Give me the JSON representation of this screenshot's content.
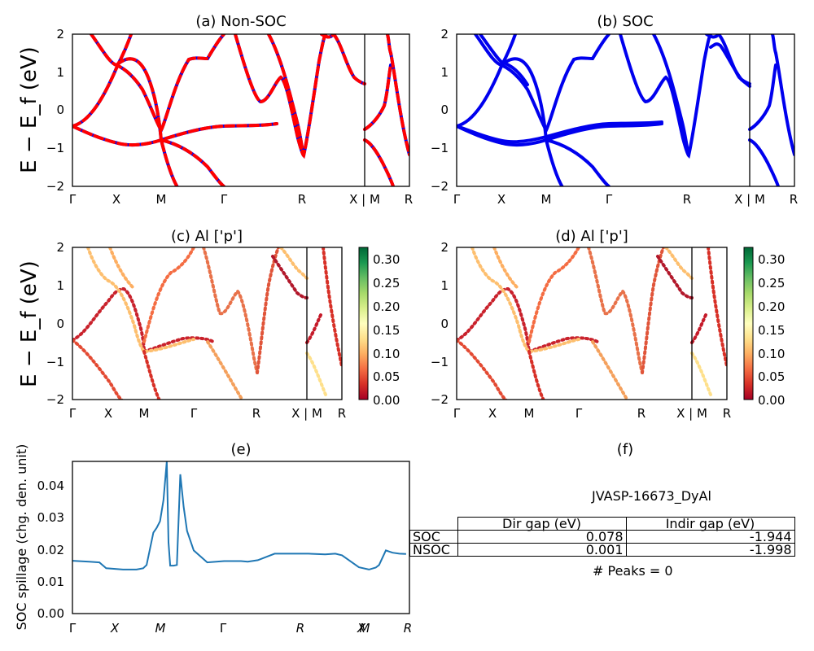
{
  "chart_data": [
    {
      "id": "a",
      "type": "line",
      "title": "(a) Non-SOC",
      "ylabel": "E − E_f (eV)",
      "ylim": [
        -2,
        2
      ],
      "yticks": [
        "2",
        "1",
        "0",
        "−1",
        "−2"
      ],
      "kpath": [
        "Γ",
        "X",
        "M",
        "Γ",
        "R",
        "X | M",
        "R"
      ],
      "series": [
        {
          "color": "#0000ee",
          "style": "solid"
        },
        {
          "color": "#ff0000",
          "style": "dashed"
        }
      ]
    },
    {
      "id": "b",
      "type": "line",
      "title": "(b) SOC",
      "ylim": [
        -2,
        2
      ],
      "yticks": [
        "2",
        "1",
        "0",
        "−1",
        "−2"
      ],
      "kpath": [
        "Γ",
        "X",
        "M",
        "Γ",
        "R",
        "X | M",
        "R"
      ],
      "series": [
        {
          "color": "#0000ee",
          "style": "solid"
        }
      ]
    },
    {
      "id": "c",
      "type": "scatter",
      "title": "(c)  Al ['p']",
      "ylabel": "E − E_f (eV)",
      "ylim": [
        -2,
        2
      ],
      "yticks": [
        "2",
        "1",
        "0",
        "−1",
        "−2"
      ],
      "kpath": [
        "Γ",
        "X",
        "M",
        "Γ",
        "R",
        "X | M",
        "R"
      ],
      "colorbar": {
        "range": [
          0,
          0.32
        ],
        "ticks": [
          "0.30",
          "0.25",
          "0.20",
          "0.15",
          "0.10",
          "0.05",
          "0.00"
        ],
        "colormap": "RdYlGn"
      }
    },
    {
      "id": "d",
      "type": "scatter",
      "title": "(d) Al ['p']",
      "ylim": [
        -2,
        2
      ],
      "yticks": [
        "2",
        "1",
        "0",
        "−1",
        "−2"
      ],
      "kpath": [
        "Γ",
        "X",
        "M",
        "Γ",
        "R",
        "X | M",
        "R"
      ],
      "colorbar": {
        "range": [
          0,
          0.32
        ],
        "ticks": [
          "0.30",
          "0.25",
          "0.20",
          "0.15",
          "0.10",
          "0.05",
          "0.00"
        ],
        "colormap": "RdYlGn"
      }
    },
    {
      "id": "e",
      "type": "line",
      "title": "(e)",
      "ylabel": "SOC spillage (chg. den. unit)",
      "ylim": [
        0,
        0.047
      ],
      "yticks": [
        "0.04",
        "0.03",
        "0.02",
        "0.01",
        "0.00"
      ],
      "kpath": [
        "Γ",
        "X",
        "M",
        "Γ",
        "R",
        "X",
        "M",
        "R"
      ],
      "series": [
        {
          "color": "#1f77b4",
          "x": [
            0,
            0.05,
            0.08,
            0.1,
            0.15,
            0.19,
            0.21,
            0.22,
            0.24,
            0.25,
            0.26,
            0.27,
            0.28,
            0.285,
            0.29,
            0.3,
            0.31,
            0.32,
            0.33,
            0.34,
            0.36,
            0.4,
            0.45,
            0.5,
            0.52,
            0.55,
            0.6,
            0.62,
            0.65,
            0.7,
            0.75,
            0.78,
            0.8,
            0.85,
            0.88,
            0.9,
            0.91,
            0.93,
            0.95,
            0.97,
            0.99
          ],
          "y": [
            0.0163,
            0.016,
            0.0158,
            0.014,
            0.0136,
            0.0136,
            0.014,
            0.015,
            0.025,
            0.0265,
            0.0285,
            0.035,
            0.047,
            0.022,
            0.0148,
            0.0148,
            0.015,
            0.043,
            0.033,
            0.0255,
            0.0195,
            0.0158,
            0.0162,
            0.0162,
            0.016,
            0.0165,
            0.0185,
            0.0185,
            0.0185,
            0.0185,
            0.0183,
            0.0185,
            0.018,
            0.0143,
            0.0136,
            0.0142,
            0.015,
            0.0195,
            0.0188,
            0.0185,
            0.0184
          ]
        }
      ]
    }
  ],
  "info": {
    "title": "(f)",
    "material": "JVASP-16673_DyAl",
    "table": {
      "headers": [
        "Dir gap (eV)",
        "Indir gap (eV)"
      ],
      "rows": [
        {
          "label": "SOC",
          "dir": "0.078",
          "indir": "-1.944"
        },
        {
          "label": "NSOC",
          "dir": "0.001",
          "indir": "-1.998"
        }
      ]
    },
    "peaks": "# Peaks = 0"
  }
}
